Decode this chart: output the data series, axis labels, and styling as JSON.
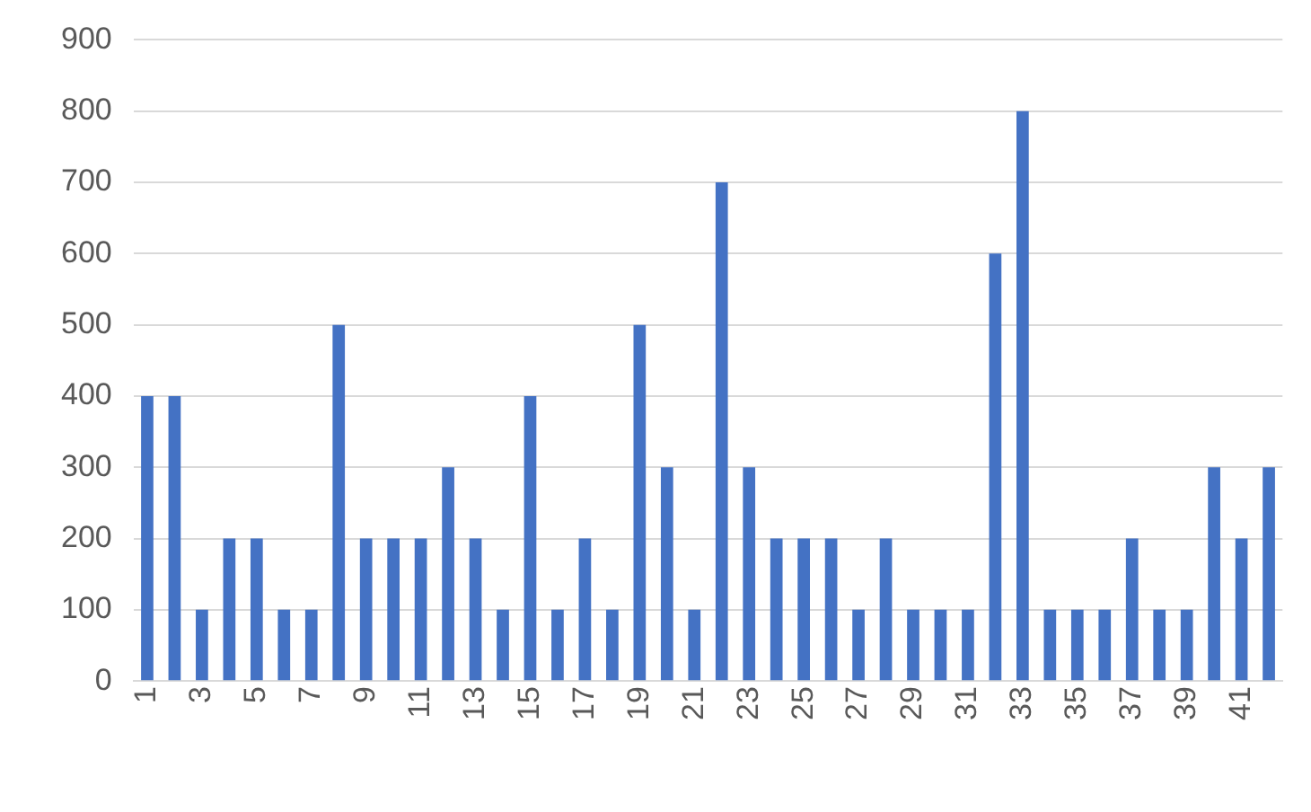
{
  "chart_data": {
    "type": "bar",
    "categories": [
      "1",
      null,
      "3",
      null,
      "5",
      null,
      "7",
      null,
      "9",
      null,
      "11",
      null,
      "13",
      null,
      "15",
      null,
      "17",
      null,
      "19",
      null,
      "21",
      null,
      "23",
      null,
      "25",
      null,
      "27",
      null,
      "29",
      null,
      "31",
      null,
      "33",
      null,
      "35",
      null,
      "37",
      null,
      "39",
      null,
      "41",
      null
    ],
    "values": [
      400,
      400,
      100,
      200,
      200,
      100,
      100,
      500,
      200,
      200,
      200,
      300,
      200,
      100,
      400,
      100,
      200,
      100,
      500,
      300,
      100,
      700,
      300,
      200,
      200,
      200,
      100,
      200,
      100,
      100,
      100,
      600,
      800,
      100,
      100,
      100,
      200,
      100,
      100,
      300,
      200,
      300
    ],
    "color": "#4472c4",
    "ylim": [
      0,
      900
    ],
    "yticks": [
      0,
      100,
      200,
      300,
      400,
      500,
      600,
      700,
      800,
      900
    ],
    "grid": "y",
    "legend": false
  }
}
